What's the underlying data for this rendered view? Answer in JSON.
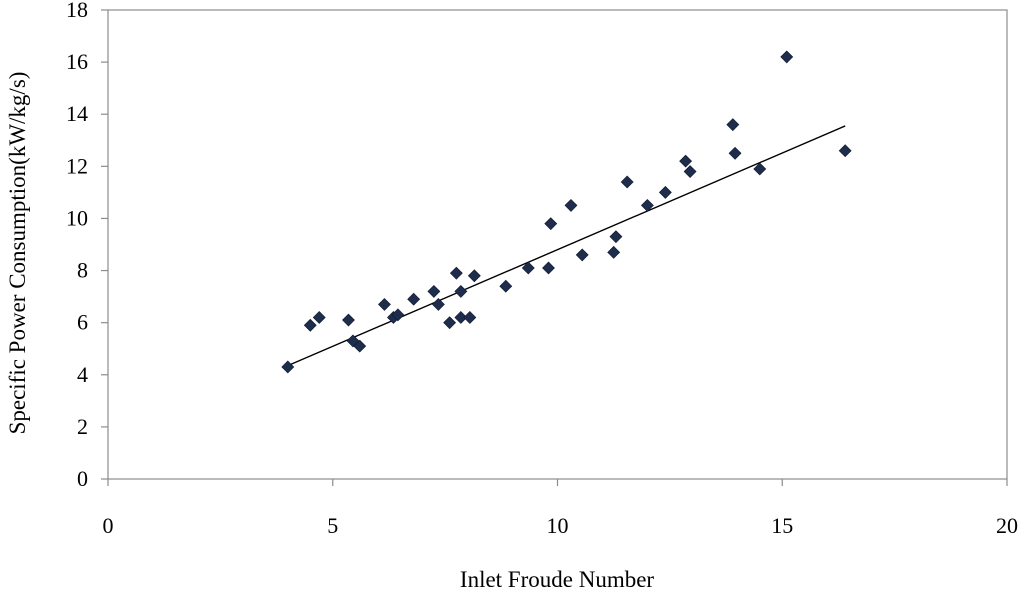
{
  "chart_data": {
    "type": "scatter",
    "title": "",
    "xlabel": "Inlet Froude Number",
    "ylabel": "Specific Power Consumption(kW/kg/s)",
    "xlim": [
      0,
      20
    ],
    "ylim": [
      0,
      18
    ],
    "x_ticks": [
      "0",
      "5",
      "10",
      "15",
      "20"
    ],
    "y_ticks": [
      "0",
      "2",
      "4",
      "6",
      "8",
      "10",
      "12",
      "14",
      "16",
      "18"
    ],
    "grid": false,
    "legend": "none",
    "marker_color": "#1f2d4d",
    "series": [
      {
        "marker": "diamond",
        "points": [
          {
            "x": 4.0,
            "y": 4.3
          },
          {
            "x": 4.5,
            "y": 5.9
          },
          {
            "x": 4.7,
            "y": 6.2
          },
          {
            "x": 5.35,
            "y": 6.1
          },
          {
            "x": 5.45,
            "y": 5.3
          },
          {
            "x": 5.6,
            "y": 5.1
          },
          {
            "x": 6.15,
            "y": 6.7
          },
          {
            "x": 6.35,
            "y": 6.2
          },
          {
            "x": 6.45,
            "y": 6.3
          },
          {
            "x": 6.8,
            "y": 6.9
          },
          {
            "x": 7.25,
            "y": 7.2
          },
          {
            "x": 7.35,
            "y": 6.7
          },
          {
            "x": 7.6,
            "y": 6.0
          },
          {
            "x": 7.75,
            "y": 7.9
          },
          {
            "x": 7.85,
            "y": 7.2
          },
          {
            "x": 7.85,
            "y": 6.2
          },
          {
            "x": 8.05,
            "y": 6.2
          },
          {
            "x": 8.15,
            "y": 7.8
          },
          {
            "x": 8.85,
            "y": 7.4
          },
          {
            "x": 9.35,
            "y": 8.1
          },
          {
            "x": 9.8,
            "y": 8.1
          },
          {
            "x": 9.85,
            "y": 9.8
          },
          {
            "x": 10.3,
            "y": 10.5
          },
          {
            "x": 10.55,
            "y": 8.6
          },
          {
            "x": 11.25,
            "y": 8.7
          },
          {
            "x": 11.3,
            "y": 9.3
          },
          {
            "x": 11.55,
            "y": 11.4
          },
          {
            "x": 12.0,
            "y": 10.5
          },
          {
            "x": 12.4,
            "y": 11.0
          },
          {
            "x": 12.85,
            "y": 12.2
          },
          {
            "x": 12.95,
            "y": 11.8
          },
          {
            "x": 13.9,
            "y": 13.6
          },
          {
            "x": 13.95,
            "y": 12.5
          },
          {
            "x": 14.5,
            "y": 11.9
          },
          {
            "x": 15.1,
            "y": 16.2
          },
          {
            "x": 16.4,
            "y": 12.6
          }
        ]
      }
    ],
    "trendline": {
      "type": "linear",
      "color": "#000000",
      "points": [
        {
          "x": 4.0,
          "y": 4.35
        },
        {
          "x": 16.4,
          "y": 13.55
        }
      ]
    }
  }
}
